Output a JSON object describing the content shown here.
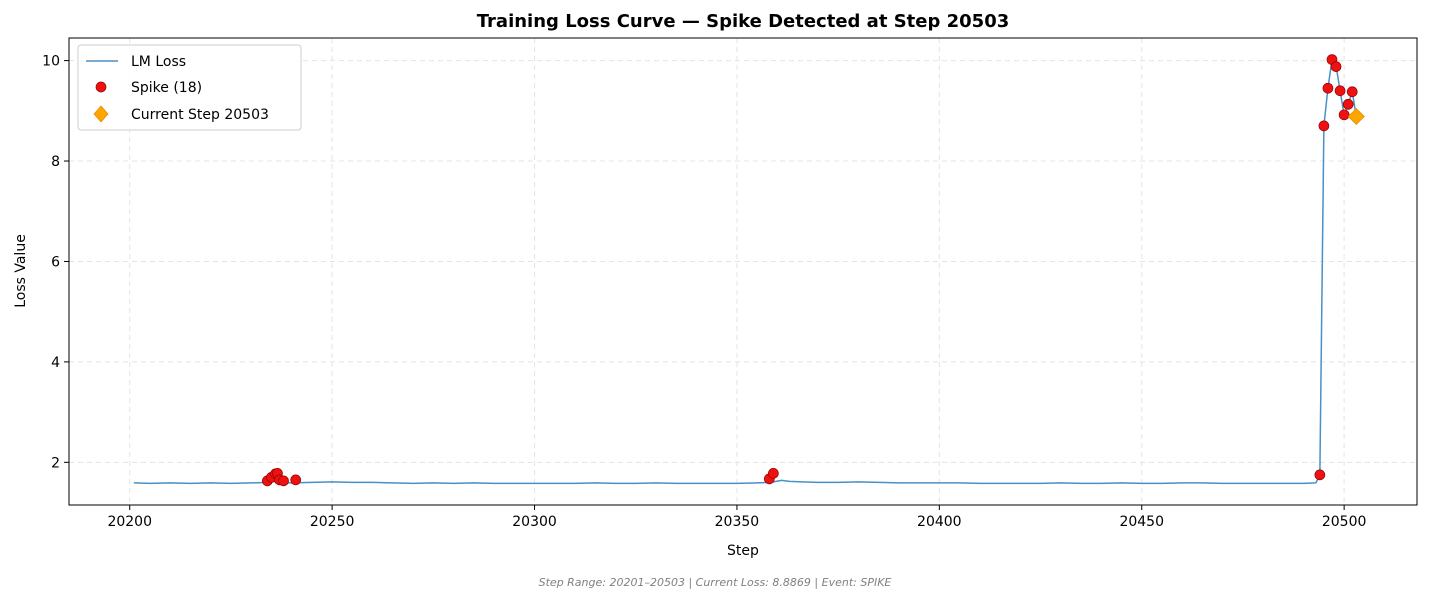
{
  "chart_data": {
    "type": "line",
    "title": "Training Loss Curve — Spike Detected at Step 20503",
    "xlabel": "Step",
    "ylabel": "Loss Value",
    "xlim": [
      20185,
      20518
    ],
    "ylim": [
      1.15,
      10.45
    ],
    "xticks": [
      20200,
      20250,
      20300,
      20350,
      20400,
      20450,
      20500
    ],
    "yticks": [
      2,
      4,
      6,
      8,
      10
    ],
    "grid": true,
    "legend_position": "top-left",
    "colors": {
      "line": "#4a90c8",
      "spike": "#ee1111",
      "spike_edge": "#990000",
      "current": "#ffa500",
      "current_edge": "#e08a00",
      "grid": "#e4e4e4",
      "footer": "#808080"
    },
    "series": [
      {
        "name": "LM Loss",
        "kind": "line",
        "x": [
          20201,
          20205,
          20210,
          20215,
          20220,
          20225,
          20230,
          20234,
          20235,
          20236,
          20237,
          20238,
          20240,
          20245,
          20250,
          20255,
          20260,
          20265,
          20270,
          20275,
          20280,
          20285,
          20290,
          20295,
          20300,
          20305,
          20310,
          20315,
          20320,
          20325,
          20330,
          20335,
          20340,
          20345,
          20350,
          20355,
          20358,
          20359,
          20361,
          20363,
          20366,
          20370,
          20375,
          20380,
          20385,
          20390,
          20395,
          20400,
          20405,
          20410,
          20415,
          20420,
          20425,
          20430,
          20435,
          20440,
          20445,
          20450,
          20455,
          20460,
          20465,
          20470,
          20475,
          20480,
          20485,
          20490,
          20493,
          20494,
          20495,
          20496,
          20497,
          20498,
          20499,
          20500,
          20501,
          20502,
          20503
        ],
        "y": [
          1.59,
          1.58,
          1.59,
          1.58,
          1.59,
          1.58,
          1.59,
          1.6,
          1.61,
          1.62,
          1.6,
          1.59,
          1.59,
          1.6,
          1.61,
          1.6,
          1.6,
          1.59,
          1.58,
          1.59,
          1.58,
          1.59,
          1.58,
          1.58,
          1.58,
          1.58,
          1.58,
          1.59,
          1.58,
          1.58,
          1.59,
          1.58,
          1.58,
          1.58,
          1.58,
          1.59,
          1.6,
          1.61,
          1.64,
          1.62,
          1.61,
          1.6,
          1.6,
          1.61,
          1.6,
          1.59,
          1.59,
          1.59,
          1.59,
          1.58,
          1.58,
          1.58,
          1.58,
          1.59,
          1.58,
          1.58,
          1.59,
          1.58,
          1.58,
          1.59,
          1.59,
          1.58,
          1.58,
          1.58,
          1.58,
          1.58,
          1.59,
          1.75,
          8.7,
          9.45,
          10.02,
          9.9,
          9.4,
          8.92,
          9.13,
          9.38,
          8.89
        ]
      },
      {
        "name": "Spike (18)",
        "kind": "scatter",
        "x": [
          20234,
          20235,
          20236,
          20236.5,
          20237,
          20238,
          20241,
          20358,
          20359,
          20494,
          20495,
          20496,
          20497,
          20498,
          20499,
          20500,
          20501,
          20502
        ],
        "y": [
          1.63,
          1.7,
          1.77,
          1.78,
          1.65,
          1.63,
          1.65,
          1.67,
          1.78,
          1.75,
          8.7,
          9.45,
          10.02,
          9.88,
          9.4,
          8.92,
          9.13,
          9.38
        ]
      },
      {
        "name": "Current Step 20503",
        "kind": "marker",
        "x": [
          20503
        ],
        "y": [
          8.8869
        ]
      }
    ],
    "footer": "Step Range: 20201–20503 | Current Loss: 8.8869 | Event: SPIKE"
  }
}
